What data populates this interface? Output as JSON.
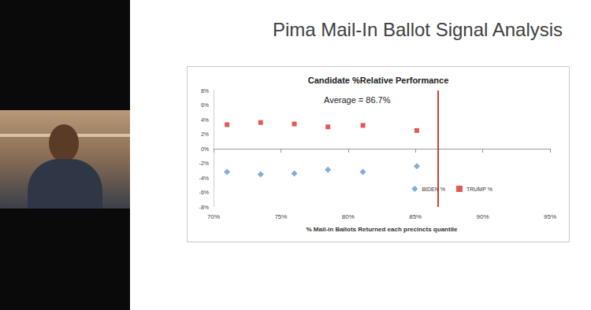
{
  "slide_title": "Pima Mail-In Ballot Signal Analysis",
  "chart_data": {
    "type": "scatter",
    "title": "Candidate %Relative Performance",
    "x_label": "% Mail-in Ballots Returned each precincts quantile",
    "x": [
      71.0,
      73.5,
      76.0,
      78.5,
      81.1,
      85.1
    ],
    "series": [
      {
        "name": "BIDEN %",
        "color": "#5b9bd5",
        "marker": "diamond",
        "values": [
          -3.2,
          -3.5,
          -3.4,
          -2.9,
          -3.2,
          -2.4
        ]
      },
      {
        "name": "TRUMP %",
        "color": "#d9302c",
        "marker": "square",
        "values": [
          3.3,
          3.6,
          3.4,
          3.0,
          3.2,
          2.5
        ]
      }
    ],
    "average": 86.7,
    "annotation": "Average = 86.7%",
    "xlim": [
      70,
      95
    ],
    "xticks": [
      {
        "value": 70,
        "label": "70%"
      },
      {
        "value": 75,
        "label": "75%"
      },
      {
        "value": 80,
        "label": "80%"
      },
      {
        "value": 85,
        "label": "85%"
      },
      {
        "value": 90,
        "label": "90%"
      },
      {
        "value": 95,
        "label": "95%"
      }
    ],
    "ylim": [
      -8,
      8
    ],
    "yticks": [
      {
        "value": -8,
        "label": "-8%"
      },
      {
        "value": -6,
        "label": "-6%"
      },
      {
        "value": -4,
        "label": "-4%"
      },
      {
        "value": -2,
        "label": "-2%"
      },
      {
        "value": 0,
        "label": "0%"
      },
      {
        "value": 2,
        "label": "2%"
      },
      {
        "value": 4,
        "label": "4%"
      },
      {
        "value": 6,
        "label": "6%"
      },
      {
        "value": 8,
        "label": "8%"
      }
    ],
    "grid": false,
    "legend": "lower right"
  }
}
